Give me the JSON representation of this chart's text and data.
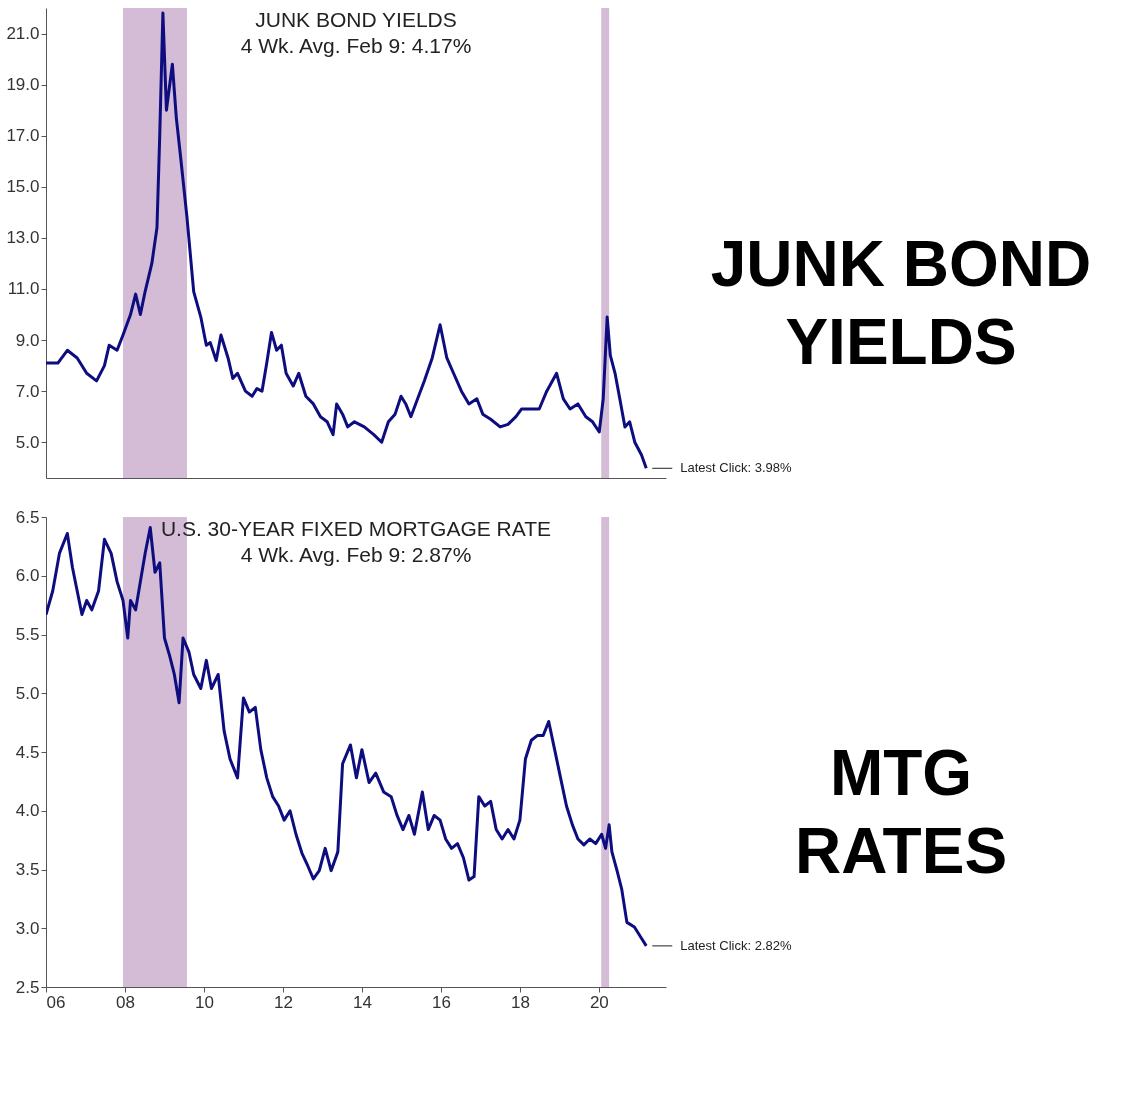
{
  "chart_data": [
    {
      "type": "line",
      "title": "JUNK BOND YIELDS",
      "subtitle": "4 Wk. Avg.        Feb 9: 4.17%",
      "x": [
        2006.0,
        2006.3,
        2006.54,
        2006.79,
        2007.03,
        2007.28,
        2007.48,
        2007.6,
        2007.8,
        2007.95,
        2008.14,
        2008.27,
        2008.39,
        2008.51,
        2008.68,
        2008.81,
        2008.88,
        2008.96,
        2009.05,
        2009.2,
        2009.3,
        2009.42,
        2009.57,
        2009.74,
        2009.92,
        2010.06,
        2010.16,
        2010.31,
        2010.43,
        2010.61,
        2010.73,
        2010.85,
        2011.05,
        2011.22,
        2011.34,
        2011.47,
        2011.59,
        2011.71,
        2011.84,
        2011.96,
        2012.08,
        2012.26,
        2012.4,
        2012.58,
        2012.77,
        2012.95,
        2013.12,
        2013.27,
        2013.36,
        2013.51,
        2013.64,
        2013.81,
        2014.06,
        2014.3,
        2014.5,
        2014.67,
        2014.84,
        2014.99,
        2015.11,
        2015.24,
        2015.41,
        2015.58,
        2015.78,
        2015.98,
        2016.15,
        2016.32,
        2016.52,
        2016.71,
        2016.91,
        2017.06,
        2017.26,
        2017.5,
        2017.7,
        2017.9,
        2018.04,
        2018.29,
        2018.49,
        2018.68,
        2018.93,
        2019.1,
        2019.27,
        2019.47,
        2019.67,
        2019.84,
        2020.01,
        2020.11,
        2020.21,
        2020.29,
        2020.41,
        2020.53,
        2020.66,
        2020.78,
        2020.91,
        2021.08,
        2021.2
      ],
      "series": [
        {
          "color": "#0d0d80",
          "values": [
            8.1,
            8.1,
            8.6,
            8.3,
            7.7,
            7.4,
            8.0,
            8.8,
            8.6,
            9.2,
            10.0,
            10.8,
            10.0,
            10.9,
            12.0,
            13.4,
            17.0,
            21.8,
            18.0,
            19.8,
            17.7,
            16.0,
            13.8,
            10.9,
            9.9,
            8.8,
            8.9,
            8.2,
            9.2,
            8.3,
            7.5,
            7.7,
            7.0,
            6.8,
            7.1,
            7.0,
            8.1,
            9.3,
            8.6,
            8.8,
            7.7,
            7.2,
            7.7,
            6.8,
            6.5,
            6.0,
            5.8,
            5.3,
            6.5,
            6.1,
            5.6,
            5.8,
            5.6,
            5.3,
            5.0,
            5.8,
            6.1,
            6.8,
            6.5,
            6.0,
            6.7,
            7.4,
            8.3,
            9.6,
            8.3,
            7.7,
            7.0,
            6.5,
            6.7,
            6.1,
            5.9,
            5.6,
            5.7,
            6.0,
            6.3,
            6.3,
            6.3,
            7.0,
            7.7,
            6.7,
            6.3,
            6.5,
            6.0,
            5.8,
            5.4,
            6.7,
            9.9,
            8.4,
            7.7,
            6.7,
            5.6,
            5.8,
            5.0,
            4.5,
            3.98
          ]
        }
      ],
      "xlim": [
        2006,
        2021.7
      ],
      "ylim": [
        3.6,
        22.0
      ],
      "yticks": [
        {
          "value": 5,
          "label": "5.0"
        },
        {
          "value": 7,
          "label": "7.0"
        },
        {
          "value": 9,
          "label": "9.0"
        },
        {
          "value": 11,
          "label": "11.0"
        },
        {
          "value": 13,
          "label": "13.0"
        },
        {
          "value": 15,
          "label": "15.0"
        },
        {
          "value": 17,
          "label": "17.0"
        },
        {
          "value": 19,
          "label": "19.0"
        },
        {
          "value": 21,
          "label": "21.0"
        }
      ],
      "tick_labels": "y",
      "grid": false,
      "legend": false,
      "bands": [
        {
          "axis": "x",
          "from": 2007.95,
          "to": 2009.57,
          "color": "#d4bbd6"
        },
        {
          "axis": "x",
          "from": 2020.06,
          "to": 2020.26,
          "color": "#d4bbd6"
        }
      ],
      "annotations": [
        {
          "text": "Latest Click: 3.98%",
          "x": 2021.2,
          "y": 3.98
        },
        "JUNK BOND\nYIELDS"
      ]
    },
    {
      "type": "line",
      "title": "U.S. 30-YEAR FIXED MORTGAGE RATE",
      "subtitle": "4 Wk. Avg.        Feb 9: 2.87%",
      "x": [
        2006.0,
        2006.17,
        2006.34,
        2006.54,
        2006.67,
        2006.79,
        2006.91,
        2007.03,
        2007.16,
        2007.33,
        2007.48,
        2007.65,
        2007.8,
        2007.95,
        2008.07,
        2008.14,
        2008.27,
        2008.39,
        2008.51,
        2008.64,
        2008.76,
        2008.88,
        2009.0,
        2009.13,
        2009.25,
        2009.37,
        2009.47,
        2009.62,
        2009.74,
        2009.92,
        2010.06,
        2010.19,
        2010.36,
        2010.51,
        2010.66,
        2010.85,
        2011.0,
        2011.15,
        2011.3,
        2011.44,
        2011.59,
        2011.74,
        2011.89,
        2012.03,
        2012.18,
        2012.33,
        2012.48,
        2012.63,
        2012.77,
        2012.92,
        2013.07,
        2013.22,
        2013.39,
        2013.51,
        2013.71,
        2013.86,
        2014.0,
        2014.18,
        2014.35,
        2014.55,
        2014.74,
        2014.89,
        2015.04,
        2015.19,
        2015.33,
        2015.53,
        2015.68,
        2015.83,
        2015.98,
        2016.12,
        2016.27,
        2016.42,
        2016.57,
        2016.71,
        2016.84,
        2016.96,
        2017.11,
        2017.26,
        2017.4,
        2017.55,
        2017.7,
        2017.85,
        2018.0,
        2018.14,
        2018.29,
        2018.44,
        2018.59,
        2018.73,
        2018.88,
        2019.03,
        2019.18,
        2019.33,
        2019.47,
        2019.62,
        2019.77,
        2019.92,
        2020.07,
        2020.17,
        2020.26,
        2020.33,
        2020.46,
        2020.58,
        2020.71,
        2020.9,
        2021.05,
        2021.2
      ],
      "series": [
        {
          "color": "#0d0d80",
          "values": [
            5.67,
            5.87,
            6.19,
            6.36,
            6.07,
            5.87,
            5.67,
            5.79,
            5.71,
            5.87,
            6.31,
            6.19,
            5.95,
            5.79,
            5.47,
            5.79,
            5.71,
            5.95,
            6.19,
            6.41,
            6.03,
            6.11,
            5.47,
            5.32,
            5.16,
            4.92,
            5.47,
            5.35,
            5.16,
            5.04,
            5.28,
            5.04,
            5.16,
            4.68,
            4.44,
            4.28,
            4.96,
            4.84,
            4.88,
            4.52,
            4.28,
            4.12,
            4.04,
            3.92,
            4.0,
            3.8,
            3.64,
            3.53,
            3.42,
            3.49,
            3.68,
            3.49,
            3.65,
            4.4,
            4.56,
            4.28,
            4.52,
            4.24,
            4.32,
            4.16,
            4.12,
            3.96,
            3.84,
            3.96,
            3.8,
            4.16,
            3.84,
            3.96,
            3.92,
            3.76,
            3.68,
            3.72,
            3.6,
            3.41,
            3.44,
            4.12,
            4.04,
            4.08,
            3.84,
            3.76,
            3.84,
            3.76,
            3.92,
            4.44,
            4.6,
            4.64,
            4.64,
            4.76,
            4.52,
            4.28,
            4.04,
            3.88,
            3.76,
            3.71,
            3.76,
            3.72,
            3.8,
            3.68,
            3.88,
            3.65,
            3.49,
            3.33,
            3.05,
            3.01,
            2.93,
            2.85
          ]
        }
      ],
      "xlim": [
        2006,
        2021.7
      ],
      "ylim": [
        2.5,
        6.5
      ],
      "xticks": [
        {
          "value": 2006,
          "label": "06"
        },
        {
          "value": 2008,
          "label": "08"
        },
        {
          "value": 2010,
          "label": "10"
        },
        {
          "value": 2012,
          "label": "12"
        },
        {
          "value": 2014,
          "label": "14"
        },
        {
          "value": 2016,
          "label": "16"
        },
        {
          "value": 2018,
          "label": "18"
        },
        {
          "value": 2020,
          "label": "20"
        }
      ],
      "yticks": [
        {
          "value": 2.5,
          "label": "2.5"
        },
        {
          "value": 3,
          "label": "3.0"
        },
        {
          "value": 3.5,
          "label": "3.5"
        },
        {
          "value": 4,
          "label": "4.0"
        },
        {
          "value": 4.5,
          "label": "4.5"
        },
        {
          "value": 5,
          "label": "5.0"
        },
        {
          "value": 5.5,
          "label": "5.5"
        },
        {
          "value": 6,
          "label": "6.0"
        },
        {
          "value": 6.5,
          "label": "6.5"
        }
      ],
      "grid": false,
      "legend": false,
      "bands": [
        {
          "axis": "x",
          "from": 2007.95,
          "to": 2009.57,
          "color": "#d4bbd6"
        },
        {
          "axis": "x",
          "from": 2020.06,
          "to": 2020.26,
          "color": "#d4bbd6"
        }
      ],
      "annotations": [
        {
          "text": "Latest Click: 2.82%",
          "x": 2021.2,
          "y": 2.85
        },
        "MTG\nRATES"
      ]
    }
  ]
}
